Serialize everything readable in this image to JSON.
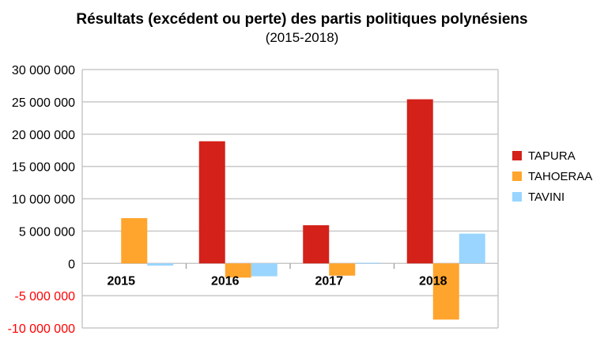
{
  "chart_data": {
    "type": "bar",
    "title": "Résultats (excédent ou perte) des partis politiques polynésiens",
    "subtitle": "(2015-2018)",
    "categories": [
      "2015",
      "2016",
      "2017",
      "2018"
    ],
    "series": [
      {
        "name": "TAPURA",
        "color": "#d42119",
        "values": [
          0,
          18900000,
          5900000,
          25400000
        ]
      },
      {
        "name": "TAHOERAA",
        "color": "#ffa42c",
        "values": [
          7000000,
          -2200000,
          -1900000,
          -8700000
        ]
      },
      {
        "name": "TAVINI",
        "color": "#99d5ff",
        "values": [
          -350000,
          -2000000,
          100000,
          4600000
        ]
      }
    ],
    "ylim": [
      -10000000,
      30000000
    ],
    "yticks": [
      30000000,
      25000000,
      20000000,
      15000000,
      10000000,
      5000000,
      0,
      -5000000,
      -10000000
    ],
    "ytick_labels": [
      "30 000 000",
      "25 000 000",
      "20 000 000",
      "15 000 000",
      "10 000 000",
      "5 000 000",
      "0",
      "-5 000 000",
      "-10 000 000"
    ],
    "negative_tick_color": "#ff0000",
    "grid": true,
    "legend": "right"
  }
}
